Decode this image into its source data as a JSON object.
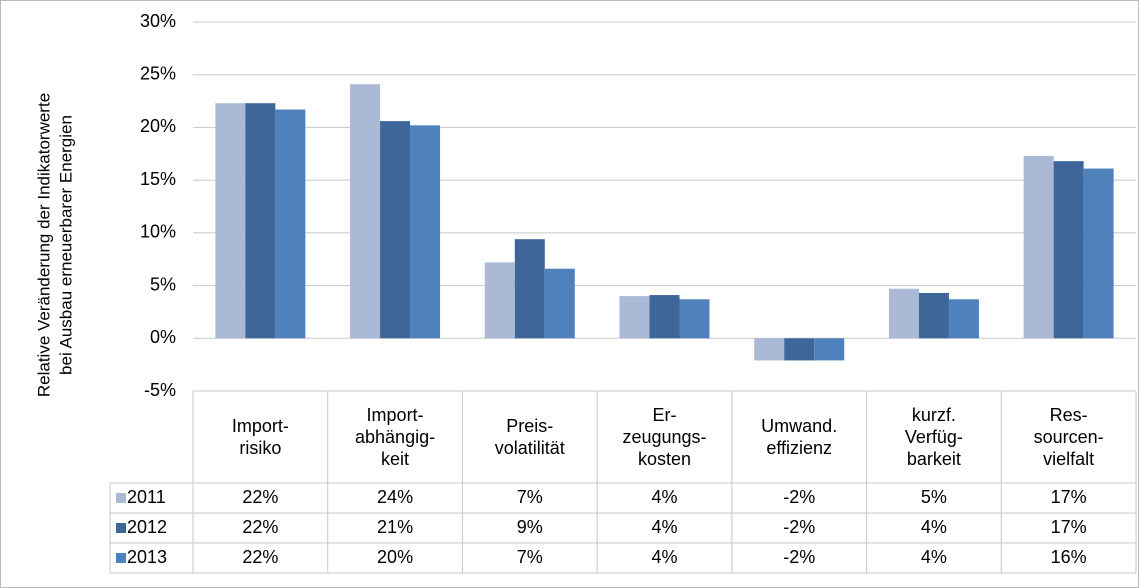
{
  "chart_data": {
    "type": "bar",
    "y_label": [
      "Relative Veränderung der Indikatorwerte",
      "bei Ausbau erneuerbarer Energien"
    ],
    "categories": [
      "Import-\nrisiko",
      "Import-\nabhängig-\nkeit",
      "Preis-\nvolatilität",
      "Er-\nzeugungs-\nkosten",
      "Umwand.\neffizienz",
      "kurzf.\nVerfüg-\nbarkeit",
      "Res-\nsourcen-\nvielfalt"
    ],
    "series": [
      {
        "name": "2011",
        "color": "#a9b9d6",
        "values": [
          22.3,
          24.1,
          7.2,
          4.0,
          -2.1,
          4.7,
          17.3
        ],
        "value_labels": [
          "22%",
          "24%",
          "7%",
          "4%",
          "-2%",
          "5%",
          "17%"
        ]
      },
      {
        "name": "2012",
        "color": "#3f6699",
        "values": [
          22.3,
          20.6,
          9.4,
          4.1,
          -2.1,
          4.3,
          16.8
        ],
        "value_labels": [
          "22%",
          "21%",
          "9%",
          "4%",
          "-2%",
          "4%",
          "17%"
        ]
      },
      {
        "name": "2013",
        "color": "#4f81bd",
        "values": [
          21.7,
          20.2,
          6.6,
          3.7,
          -2.1,
          3.7,
          16.1
        ],
        "value_labels": [
          "22%",
          "20%",
          "7%",
          "4%",
          "-2%",
          "4%",
          "16%"
        ]
      }
    ],
    "ylim": [
      -5,
      30
    ],
    "yticks": [
      {
        "value": -5,
        "label": "-5%"
      },
      {
        "value": 0,
        "label": "0%"
      },
      {
        "value": 5,
        "label": "5%"
      },
      {
        "value": 10,
        "label": "10%"
      },
      {
        "value": 15,
        "label": "15%"
      },
      {
        "value": 20,
        "label": "20%"
      },
      {
        "value": 25,
        "label": "25%"
      },
      {
        "value": 30,
        "label": "30%"
      }
    ],
    "grid": true
  }
}
